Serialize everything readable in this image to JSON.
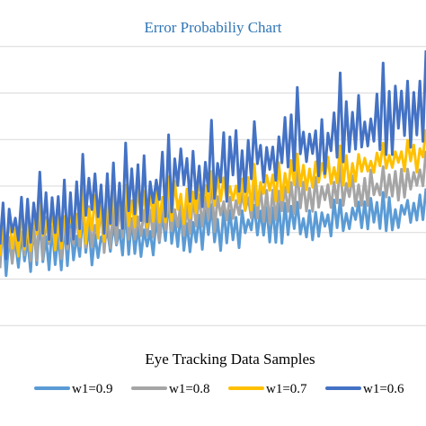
{
  "chart_data": {
    "type": "line",
    "title": "Error Probabiliy Chart",
    "xlabel": "Eye Tracking Data Samples",
    "ylabel": "",
    "x_range": [
      1,
      140
    ],
    "y_range": [
      0,
      8
    ],
    "y_gridlines": [
      1,
      2,
      3,
      4,
      5,
      6,
      7
    ],
    "grid": true,
    "legend_position": "bottom",
    "series": [
      {
        "name": "w1=0.9",
        "color": "#5b9bd5",
        "trend": {
          "start": 2.6,
          "end": 3.5,
          "mean_offset": 0.0,
          "amplitude_start": 0.55,
          "amplitude_end": 0.35
        }
      },
      {
        "name": "w1=0.8",
        "color": "#a5a5a5",
        "trend": {
          "start": 2.75,
          "end": 4.15,
          "mean_offset": 0.0,
          "amplitude_start": 0.55,
          "amplitude_end": 0.35
        }
      },
      {
        "name": "w1=0.7",
        "color": "#ffc000",
        "trend": {
          "start": 2.9,
          "end": 4.7,
          "mean_offset": 0.0,
          "amplitude_start": 0.55,
          "amplitude_end": 0.4
        }
      },
      {
        "name": "w1=0.6",
        "color": "#4472c4",
        "trend": {
          "start": 3.1,
          "end": 5.6,
          "mean_offset": 0.0,
          "amplitude_start": 0.7,
          "amplitude_end": 0.75
        }
      }
    ]
  }
}
